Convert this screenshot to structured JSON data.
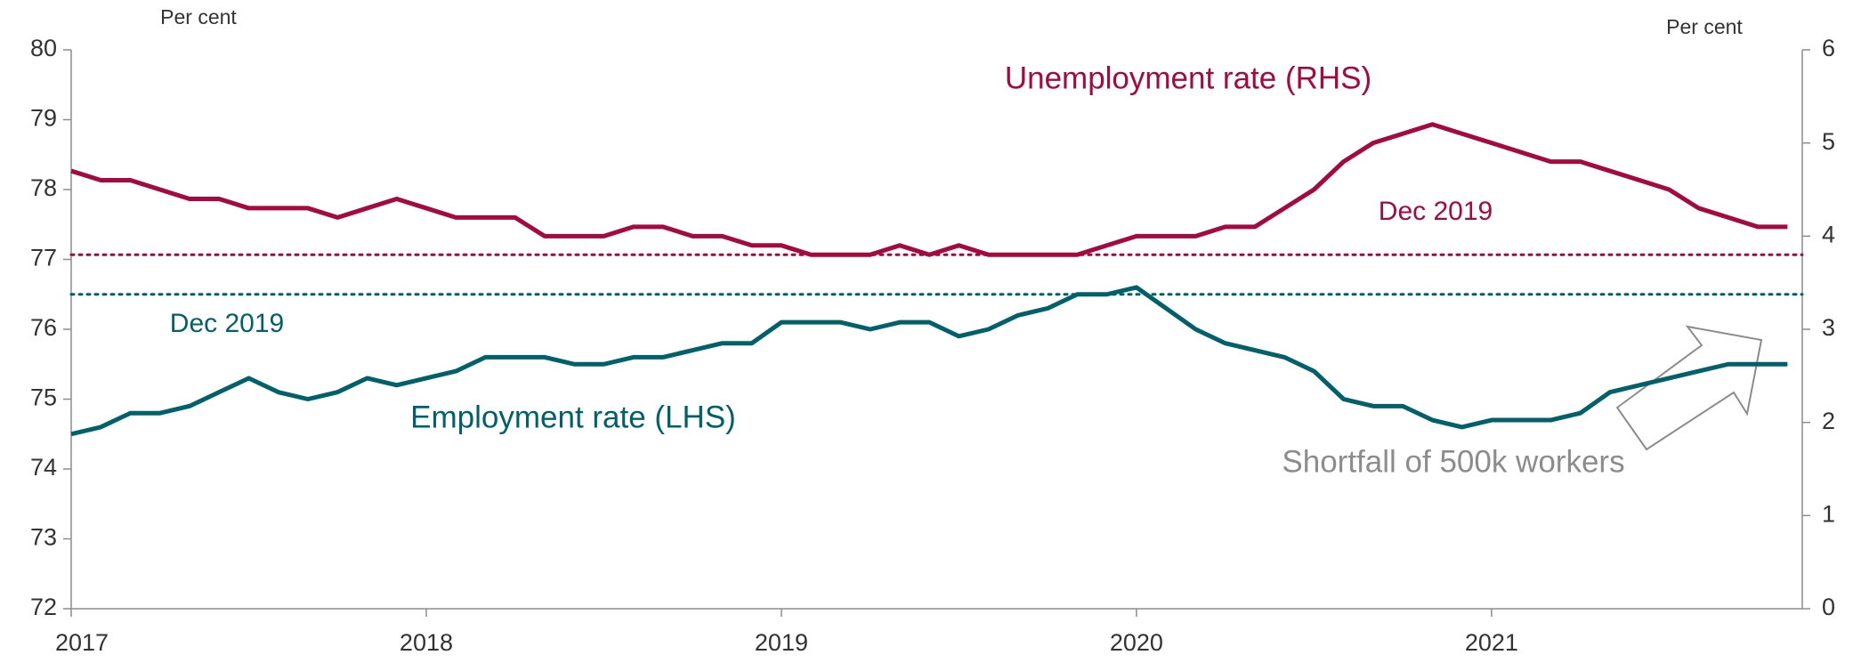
{
  "chart_data": {
    "type": "line",
    "x": [
      0,
      1,
      2,
      3,
      4,
      5,
      6,
      7,
      8,
      9,
      10,
      11,
      12,
      13,
      14,
      15,
      16,
      17,
      18,
      19,
      20,
      21,
      22,
      23,
      24,
      25,
      26,
      27,
      28,
      29,
      30,
      31,
      32,
      33,
      34,
      35,
      36,
      37,
      38,
      39,
      40,
      41,
      42,
      43,
      44,
      45,
      46,
      47,
      48,
      49,
      50,
      51,
      52,
      53,
      54,
      55,
      56,
      57,
      58
    ],
    "xlim": [
      0,
      58.5
    ],
    "xticks": [
      {
        "value": 0,
        "label": "2017"
      },
      {
        "value": 12,
        "label": "2018"
      },
      {
        "value": 24,
        "label": "2019"
      },
      {
        "value": 36,
        "label": "2020"
      },
      {
        "value": 48,
        "label": "2021"
      }
    ],
    "ylabel": "Per cent",
    "y2label": "Per cent",
    "ylim": [
      72,
      80
    ],
    "yticks": [
      72,
      73,
      74,
      75,
      76,
      77,
      78,
      79,
      80
    ],
    "y2lim": [
      0,
      6
    ],
    "y2ticks": [
      0,
      1,
      2,
      3,
      4,
      5,
      6
    ],
    "series": [
      {
        "name": "Unemployment rate (RHS)",
        "color": "#a6093d",
        "axis": "y2",
        "values": [
          4.7,
          4.6,
          4.6,
          4.5,
          4.4,
          4.4,
          4.3,
          4.3,
          4.3,
          4.2,
          4.3,
          4.4,
          4.3,
          4.2,
          4.2,
          4.2,
          4.0,
          4.0,
          4.0,
          4.1,
          4.1,
          4.0,
          4.0,
          3.9,
          3.9,
          3.8,
          3.8,
          3.8,
          3.9,
          3.8,
          3.9,
          3.8,
          3.8,
          3.8,
          3.8,
          3.9,
          4.0,
          4.0,
          4.0,
          4.1,
          4.1,
          4.3,
          4.5,
          4.8,
          5.0,
          5.1,
          5.2,
          5.1,
          5.0,
          4.9,
          4.8,
          4.8,
          4.7,
          4.6,
          4.5,
          4.3,
          4.2,
          4.1,
          4.1
        ]
      },
      {
        "name": "Employment rate (LHS)",
        "color": "#00616b",
        "axis": "y",
        "values": [
          74.5,
          74.6,
          74.8,
          74.8,
          74.9,
          75.1,
          75.3,
          75.1,
          75.0,
          75.1,
          75.3,
          75.2,
          75.3,
          75.4,
          75.6,
          75.6,
          75.6,
          75.5,
          75.5,
          75.6,
          75.6,
          75.7,
          75.8,
          75.8,
          76.1,
          76.1,
          76.1,
          76.0,
          76.1,
          76.1,
          75.9,
          76.0,
          76.2,
          76.3,
          76.5,
          76.5,
          76.6,
          76.3,
          76.0,
          75.8,
          75.7,
          75.6,
          75.4,
          75.0,
          74.9,
          74.9,
          74.7,
          74.6,
          74.7,
          74.7,
          74.7,
          74.8,
          75.1,
          75.2,
          75.3,
          75.4,
          75.5,
          75.5,
          75.5
        ]
      }
    ],
    "reference_lines": [
      {
        "label": "Dec 2019",
        "value": 3.8,
        "axis": "y2",
        "color": "#a6093d"
      },
      {
        "label": "Dec 2019",
        "value": 76.5,
        "axis": "y",
        "color": "#00616b"
      }
    ],
    "annotations": [
      "Shortfall of 500k workers"
    ]
  }
}
